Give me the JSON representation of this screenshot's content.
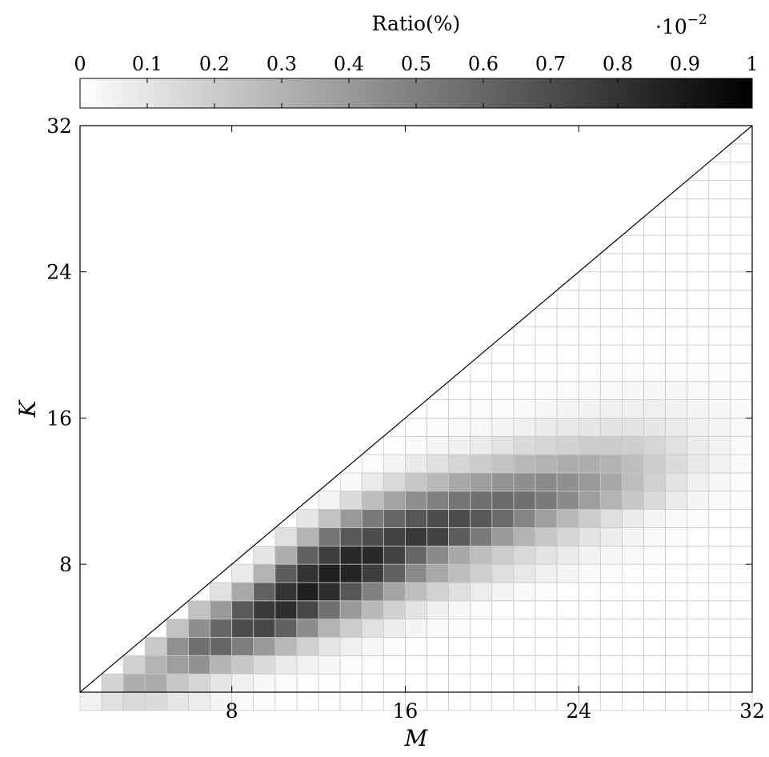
{
  "chart_data": {
    "type": "heatmap",
    "xlabel": "M",
    "ylabel": "K",
    "xlim": [
      1,
      32
    ],
    "ylim": [
      1,
      32
    ],
    "xticks": [
      8,
      16,
      24,
      32
    ],
    "yticks": [
      8,
      16,
      24,
      32
    ],
    "grid": true,
    "colorbar": {
      "title": "Ratio(%)",
      "multiplier": "·10",
      "multiplier_exponent": "−2",
      "range": [
        0,
        1
      ],
      "ticks": [
        0,
        0.1,
        0.2,
        0.3,
        0.4,
        0.5,
        0.6,
        0.7,
        0.8,
        0.9,
        1
      ],
      "tick_labels": [
        "0",
        "0.1",
        "0.2",
        "0.3",
        "0.4",
        "0.5",
        "0.6",
        "0.7",
        "0.8",
        "0.9",
        "1"
      ],
      "position": "top",
      "colormap": "white-to-black"
    },
    "cells": {
      "description_rows_by_K": "each row lists values for M from K to 32 (upper-left triangle blank)",
      "rows": [
        {
          "K": 1,
          "start_M": 2,
          "values": [
            0.05,
            0.12,
            0.15,
            0.14,
            0.1,
            0.07,
            0.04,
            0.02,
            0.01,
            0.005,
            0,
            0,
            0,
            0,
            0,
            0,
            0,
            0,
            0,
            0,
            0,
            0,
            0,
            0,
            0,
            0,
            0,
            0,
            0,
            0,
            0
          ]
        },
        {
          "K": 2,
          "start_M": 3,
          "values": [
            0.17,
            0.32,
            0.33,
            0.22,
            0.16,
            0.1,
            0.06,
            0.03,
            0.015,
            0.008,
            0.004,
            0,
            0,
            0,
            0,
            0,
            0,
            0,
            0,
            0,
            0,
            0,
            0,
            0,
            0,
            0,
            0,
            0,
            0,
            0
          ]
        },
        {
          "K": 3,
          "start_M": 4,
          "values": [
            0.18,
            0.3,
            0.38,
            0.43,
            0.3,
            0.22,
            0.14,
            0.08,
            0.05,
            0.03,
            0.015,
            0.008,
            0,
            0,
            0,
            0,
            0,
            0,
            0,
            0,
            0,
            0,
            0,
            0,
            0,
            0,
            0,
            0,
            0
          ]
        },
        {
          "K": 4,
          "start_M": 5,
          "values": [
            0.21,
            0.43,
            0.56,
            0.6,
            0.51,
            0.4,
            0.28,
            0.18,
            0.1,
            0.06,
            0.03,
            0.015,
            0.008,
            0,
            0,
            0,
            0,
            0,
            0,
            0,
            0,
            0,
            0,
            0,
            0,
            0,
            0,
            0
          ]
        },
        {
          "K": 5,
          "start_M": 6,
          "values": [
            0.24,
            0.44,
            0.6,
            0.7,
            0.72,
            0.62,
            0.45,
            0.3,
            0.2,
            0.12,
            0.07,
            0.04,
            0.02,
            0.01,
            0,
            0,
            0,
            0,
            0,
            0,
            0,
            0,
            0,
            0,
            0,
            0,
            0
          ]
        },
        {
          "K": 6,
          "start_M": 7,
          "values": [
            0.24,
            0.4,
            0.65,
            0.78,
            0.82,
            0.72,
            0.56,
            0.4,
            0.28,
            0.18,
            0.11,
            0.06,
            0.03,
            0.015,
            0.008,
            0,
            0,
            0,
            0,
            0,
            0,
            0,
            0,
            0,
            0,
            0
          ]
        },
        {
          "K": 7,
          "start_M": 8,
          "values": [
            0.12,
            0.34,
            0.62,
            0.8,
            0.88,
            0.82,
            0.66,
            0.5,
            0.36,
            0.26,
            0.18,
            0.12,
            0.07,
            0.04,
            0.02,
            0.01,
            0,
            0,
            0,
            0,
            0,
            0,
            0,
            0,
            0
          ]
        },
        {
          "K": 8,
          "start_M": 9,
          "values": [
            0.08,
            0.3,
            0.64,
            0.8,
            0.88,
            0.86,
            0.76,
            0.62,
            0.46,
            0.34,
            0.26,
            0.19,
            0.13,
            0.09,
            0.06,
            0.04,
            0.02,
            0.01,
            0,
            0,
            0,
            0,
            0,
            0
          ]
        },
        {
          "K": 9,
          "start_M": 10,
          "values": [
            0.1,
            0.32,
            0.62,
            0.76,
            0.84,
            0.84,
            0.74,
            0.6,
            0.46,
            0.34,
            0.26,
            0.2,
            0.15,
            0.11,
            0.08,
            0.05,
            0.03,
            0.02,
            0.01,
            0,
            0,
            0,
            0
          ]
        },
        {
          "K": 10,
          "start_M": 11,
          "values": [
            0.12,
            0.3,
            0.54,
            0.66,
            0.7,
            0.74,
            0.78,
            0.74,
            0.64,
            0.52,
            0.4,
            0.3,
            0.22,
            0.16,
            0.11,
            0.07,
            0.04,
            0.02,
            0.01,
            0,
            0,
            0
          ]
        },
        {
          "K": 11,
          "start_M": 12,
          "values": [
            0.1,
            0.24,
            0.4,
            0.52,
            0.6,
            0.66,
            0.7,
            0.7,
            0.66,
            0.58,
            0.48,
            0.38,
            0.28,
            0.2,
            0.13,
            0.08,
            0.04,
            0.02,
            0.01,
            0,
            0
          ]
        },
        {
          "K": 12,
          "start_M": 13,
          "values": [
            0.04,
            0.14,
            0.26,
            0.36,
            0.44,
            0.5,
            0.54,
            0.56,
            0.58,
            0.56,
            0.52,
            0.46,
            0.38,
            0.3,
            0.22,
            0.14,
            0.08,
            0.04,
            0.02,
            0.01
          ]
        },
        {
          "K": 13,
          "start_M": 14,
          "values": [
            0.02,
            0.08,
            0.14,
            0.22,
            0.28,
            0.34,
            0.38,
            0.42,
            0.44,
            0.46,
            0.44,
            0.4,
            0.34,
            0.26,
            0.18,
            0.11,
            0.06,
            0.03,
            0.015
          ]
        },
        {
          "K": 14,
          "start_M": 15,
          "values": [
            0.01,
            0.04,
            0.08,
            0.12,
            0.16,
            0.2,
            0.24,
            0.28,
            0.3,
            0.32,
            0.32,
            0.3,
            0.26,
            0.2,
            0.14,
            0.09,
            0.05,
            0.02
          ]
        },
        {
          "K": 15,
          "start_M": 16,
          "values": [
            0.005,
            0.02,
            0.04,
            0.06,
            0.08,
            0.11,
            0.14,
            0.16,
            0.18,
            0.2,
            0.2,
            0.19,
            0.16,
            0.12,
            0.08,
            0.05,
            0.02
          ]
        },
        {
          "K": 16,
          "start_M": 17,
          "values": [
            0.003,
            0.01,
            0.02,
            0.03,
            0.04,
            0.06,
            0.08,
            0.09,
            0.1,
            0.11,
            0.11,
            0.1,
            0.08,
            0.06,
            0.04,
            0.02
          ]
        },
        {
          "K": 17,
          "start_M": 18,
          "values": [
            0,
            0.005,
            0.01,
            0.015,
            0.02,
            0.03,
            0.04,
            0.05,
            0.06,
            0.06,
            0.06,
            0.05,
            0.04,
            0.03,
            0.02
          ]
        },
        {
          "K": 18,
          "start_M": 19,
          "values": [
            0,
            0,
            0.005,
            0.008,
            0.01,
            0.015,
            0.02,
            0.025,
            0.03,
            0.03,
            0.03,
            0.025,
            0.02,
            0.01
          ]
        },
        {
          "K": 19,
          "start_M": 20,
          "values": [
            0,
            0,
            0,
            0.004,
            0.006,
            0.008,
            0.01,
            0.012,
            0.014,
            0.014,
            0.012,
            0.01,
            0.006
          ]
        },
        {
          "K": 20,
          "start_M": 21,
          "values": [
            0,
            0,
            0,
            0,
            0.003,
            0.004,
            0.005,
            0.006,
            0.006,
            0.005,
            0.004,
            0.002
          ]
        },
        {
          "K": 21,
          "start_M": 22,
          "values": [
            0,
            0,
            0,
            0,
            0,
            0,
            0,
            0,
            0,
            0,
            0
          ]
        },
        {
          "K": 22,
          "start_M": 23,
          "values": [
            0,
            0,
            0,
            0,
            0,
            0,
            0,
            0,
            0,
            0
          ]
        },
        {
          "K": 23,
          "start_M": 24,
          "values": [
            0,
            0,
            0,
            0,
            0,
            0,
            0,
            0,
            0
          ]
        },
        {
          "K": 24,
          "start_M": 25,
          "values": [
            0,
            0,
            0,
            0,
            0,
            0,
            0,
            0
          ]
        },
        {
          "K": 25,
          "start_M": 26,
          "values": [
            0,
            0,
            0,
            0,
            0,
            0,
            0
          ]
        },
        {
          "K": 26,
          "start_M": 27,
          "values": [
            0,
            0,
            0,
            0,
            0,
            0
          ]
        },
        {
          "K": 27,
          "start_M": 28,
          "values": [
            0,
            0,
            0,
            0,
            0
          ]
        },
        {
          "K": 28,
          "start_M": 29,
          "values": [
            0,
            0,
            0,
            0
          ]
        },
        {
          "K": 29,
          "start_M": 30,
          "values": [
            0,
            0,
            0
          ]
        },
        {
          "K": 30,
          "start_M": 31,
          "values": [
            0,
            0
          ]
        },
        {
          "K": 31,
          "start_M": 32,
          "values": [
            0
          ]
        }
      ]
    }
  }
}
